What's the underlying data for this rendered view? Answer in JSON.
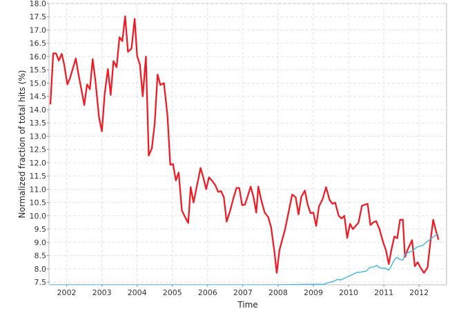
{
  "chart_data": {
    "type": "line",
    "title": "",
    "xlabel": "Time",
    "ylabel": "Normalized fraction of total hits (%)",
    "xlim": [
      2001.5,
      2012.78
    ],
    "ylim": [
      7.4,
      18.0
    ],
    "xticks": [
      {
        "value": 2002,
        "label": "2002"
      },
      {
        "value": 2003,
        "label": "2003"
      },
      {
        "value": 2004,
        "label": "2004"
      },
      {
        "value": 2005,
        "label": "2005"
      },
      {
        "value": 2006,
        "label": "2006"
      },
      {
        "value": 2007,
        "label": "2007"
      },
      {
        "value": 2008,
        "label": "2008"
      },
      {
        "value": 2009,
        "label": "2009"
      },
      {
        "value": 2010,
        "label": "2010"
      },
      {
        "value": 2011,
        "label": "2011"
      },
      {
        "value": 2012,
        "label": "2012"
      }
    ],
    "yticks": [
      {
        "value": 7.5,
        "label": "7.5"
      },
      {
        "value": 8.0,
        "label": "8.0"
      },
      {
        "value": 8.5,
        "label": "8.5"
      },
      {
        "value": 9.0,
        "label": "9.0"
      },
      {
        "value": 9.5,
        "label": "9.5"
      },
      {
        "value": 10.0,
        "label": "10.0"
      },
      {
        "value": 10.5,
        "label": "10.5"
      },
      {
        "value": 11.0,
        "label": "11.0"
      },
      {
        "value": 11.5,
        "label": "11.5"
      },
      {
        "value": 12.0,
        "label": "12.0"
      },
      {
        "value": 12.5,
        "label": "12.5"
      },
      {
        "value": 13.0,
        "label": "13.0"
      },
      {
        "value": 13.5,
        "label": "13.5"
      },
      {
        "value": 14.0,
        "label": "14.0"
      },
      {
        "value": 14.5,
        "label": "14.5"
      },
      {
        "value": 15.0,
        "label": "15.0"
      },
      {
        "value": 15.5,
        "label": "15.5"
      },
      {
        "value": 16.0,
        "label": "16.0"
      },
      {
        "value": 16.5,
        "label": "16.5"
      },
      {
        "value": 17.0,
        "label": "17.0"
      },
      {
        "value": 17.5,
        "label": "17.5"
      },
      {
        "value": 18.0,
        "label": "18.0"
      }
    ],
    "grid": true,
    "legend": "none",
    "series": [
      {
        "color": "#ee1c25",
        "points": [
          [
            2001.54,
            14.2
          ],
          [
            2001.62,
            16.12
          ],
          [
            2001.7,
            16.12
          ],
          [
            2001.78,
            15.85
          ],
          [
            2001.86,
            16.1
          ],
          [
            2001.93,
            15.7
          ],
          [
            2002.02,
            14.95
          ],
          [
            2002.1,
            15.2
          ],
          [
            2002.26,
            15.93
          ],
          [
            2002.34,
            15.3
          ],
          [
            2002.42,
            14.75
          ],
          [
            2002.5,
            14.17
          ],
          [
            2002.58,
            14.95
          ],
          [
            2002.66,
            14.77
          ],
          [
            2002.74,
            15.9
          ],
          [
            2002.82,
            15.05
          ],
          [
            2002.92,
            13.7
          ],
          [
            2003.0,
            13.18
          ],
          [
            2003.08,
            14.6
          ],
          [
            2003.17,
            15.53
          ],
          [
            2003.25,
            14.55
          ],
          [
            2003.33,
            15.83
          ],
          [
            2003.42,
            15.6
          ],
          [
            2003.5,
            16.73
          ],
          [
            2003.58,
            16.58
          ],
          [
            2003.66,
            17.52
          ],
          [
            2003.74,
            16.18
          ],
          [
            2003.84,
            16.3
          ],
          [
            2003.93,
            17.42
          ],
          [
            2004.0,
            16.02
          ],
          [
            2004.08,
            15.7
          ],
          [
            2004.16,
            14.5
          ],
          [
            2004.25,
            16.0
          ],
          [
            2004.33,
            12.27
          ],
          [
            2004.42,
            12.55
          ],
          [
            2004.5,
            13.5
          ],
          [
            2004.58,
            15.32
          ],
          [
            2004.66,
            14.93
          ],
          [
            2004.76,
            15.0
          ],
          [
            2004.86,
            13.8
          ],
          [
            2004.94,
            11.92
          ],
          [
            2005.02,
            11.95
          ],
          [
            2005.1,
            11.33
          ],
          [
            2005.18,
            11.63
          ],
          [
            2005.27,
            10.2
          ],
          [
            2005.36,
            9.95
          ],
          [
            2005.45,
            9.73
          ],
          [
            2005.52,
            11.08
          ],
          [
            2005.6,
            10.5
          ],
          [
            2005.7,
            11.15
          ],
          [
            2005.8,
            11.8
          ],
          [
            2005.88,
            11.43
          ],
          [
            2005.96,
            11.0
          ],
          [
            2006.04,
            11.45
          ],
          [
            2006.14,
            11.3
          ],
          [
            2006.22,
            11.15
          ],
          [
            2006.3,
            10.9
          ],
          [
            2006.38,
            10.93
          ],
          [
            2006.46,
            10.7
          ],
          [
            2006.54,
            9.78
          ],
          [
            2006.64,
            10.2
          ],
          [
            2006.74,
            10.7
          ],
          [
            2006.82,
            11.05
          ],
          [
            2006.9,
            11.05
          ],
          [
            2006.98,
            10.4
          ],
          [
            2007.06,
            10.42
          ],
          [
            2007.14,
            10.75
          ],
          [
            2007.22,
            11.1
          ],
          [
            2007.3,
            10.72
          ],
          [
            2007.38,
            10.12
          ],
          [
            2007.44,
            11.1
          ],
          [
            2007.52,
            10.6
          ],
          [
            2007.62,
            10.12
          ],
          [
            2007.72,
            9.95
          ],
          [
            2007.8,
            9.58
          ],
          [
            2007.9,
            8.6
          ],
          [
            2007.96,
            7.85
          ],
          [
            2008.04,
            8.72
          ],
          [
            2008.2,
            9.5
          ],
          [
            2008.4,
            10.8
          ],
          [
            2008.5,
            10.7
          ],
          [
            2008.58,
            10.05
          ],
          [
            2008.66,
            10.72
          ],
          [
            2008.76,
            10.95
          ],
          [
            2008.84,
            10.42
          ],
          [
            2008.92,
            10.1
          ],
          [
            2009.0,
            10.12
          ],
          [
            2009.08,
            9.62
          ],
          [
            2009.16,
            10.35
          ],
          [
            2009.26,
            10.62
          ],
          [
            2009.36,
            11.08
          ],
          [
            2009.46,
            10.6
          ],
          [
            2009.54,
            10.45
          ],
          [
            2009.62,
            10.5
          ],
          [
            2009.72,
            10.0
          ],
          [
            2009.8,
            9.9
          ],
          [
            2009.88,
            10.0
          ],
          [
            2009.96,
            9.17
          ],
          [
            2010.04,
            9.7
          ],
          [
            2010.12,
            9.5
          ],
          [
            2010.2,
            9.62
          ],
          [
            2010.28,
            9.73
          ],
          [
            2010.38,
            10.38
          ],
          [
            2010.46,
            10.42
          ],
          [
            2010.54,
            10.45
          ],
          [
            2010.62,
            9.65
          ],
          [
            2010.7,
            9.75
          ],
          [
            2010.78,
            9.8
          ],
          [
            2010.88,
            9.48
          ],
          [
            2010.98,
            9.0
          ],
          [
            2011.06,
            8.7
          ],
          [
            2011.14,
            8.18
          ],
          [
            2011.22,
            8.75
          ],
          [
            2011.3,
            9.22
          ],
          [
            2011.38,
            9.15
          ],
          [
            2011.46,
            9.85
          ],
          [
            2011.54,
            9.85
          ],
          [
            2011.6,
            8.45
          ],
          [
            2011.7,
            8.8
          ],
          [
            2011.8,
            9.08
          ],
          [
            2011.88,
            8.1
          ],
          [
            2011.96,
            8.25
          ],
          [
            2012.04,
            8.05
          ],
          [
            2012.14,
            7.85
          ],
          [
            2012.24,
            8.05
          ],
          [
            2012.32,
            9.0
          ],
          [
            2012.4,
            9.85
          ],
          [
            2012.48,
            9.42
          ],
          [
            2012.55,
            9.1
          ]
        ]
      },
      {
        "color": "#4ab8e0",
        "points": [
          [
            2001.54,
            7.4
          ],
          [
            2002.0,
            7.4
          ],
          [
            2004.0,
            7.4
          ],
          [
            2006.0,
            7.4
          ],
          [
            2008.0,
            7.4
          ],
          [
            2008.9,
            7.42
          ],
          [
            2009.3,
            7.42
          ],
          [
            2009.4,
            7.47
          ],
          [
            2009.55,
            7.52
          ],
          [
            2009.68,
            7.6
          ],
          [
            2009.78,
            7.58
          ],
          [
            2009.9,
            7.66
          ],
          [
            2010.0,
            7.72
          ],
          [
            2010.1,
            7.78
          ],
          [
            2010.22,
            7.86
          ],
          [
            2010.35,
            7.88
          ],
          [
            2010.5,
            7.92
          ],
          [
            2010.6,
            8.05
          ],
          [
            2010.72,
            8.08
          ],
          [
            2010.8,
            8.13
          ],
          [
            2010.88,
            8.05
          ],
          [
            2010.96,
            8.02
          ],
          [
            2011.04,
            8.03
          ],
          [
            2011.14,
            7.95
          ],
          [
            2011.2,
            8.08
          ],
          [
            2011.3,
            8.35
          ],
          [
            2011.38,
            8.43
          ],
          [
            2011.46,
            8.35
          ],
          [
            2011.54,
            8.33
          ],
          [
            2011.6,
            8.55
          ],
          [
            2011.68,
            8.6
          ],
          [
            2011.76,
            8.65
          ],
          [
            2011.84,
            8.7
          ],
          [
            2011.92,
            8.8
          ],
          [
            2012.0,
            8.85
          ],
          [
            2012.1,
            8.88
          ],
          [
            2012.2,
            9.0
          ],
          [
            2012.3,
            9.1
          ],
          [
            2012.4,
            9.2
          ],
          [
            2012.5,
            9.3
          ],
          [
            2012.55,
            9.3
          ]
        ]
      }
    ]
  }
}
